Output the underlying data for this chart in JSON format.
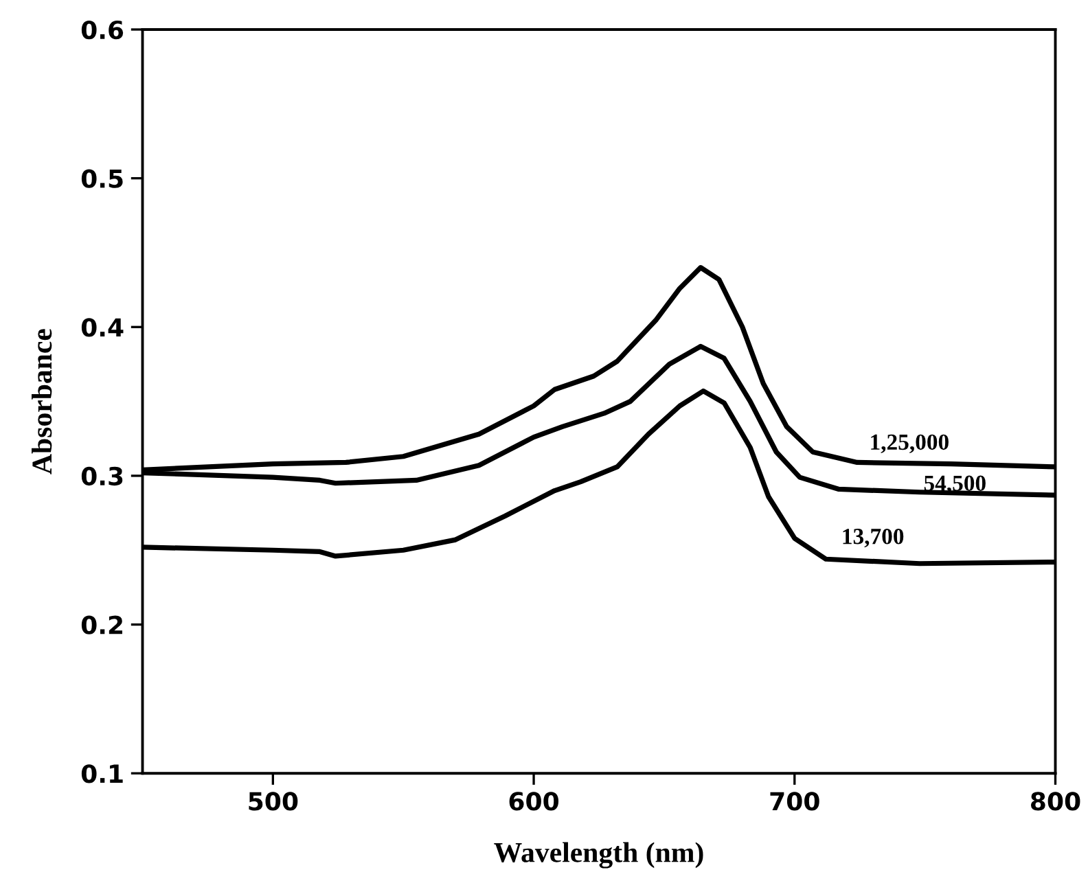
{
  "chart_data": {
    "type": "line",
    "xlabel": "Wavelength (nm)",
    "ylabel": "Absorbance",
    "xlim": [
      450,
      800
    ],
    "xticks": [
      500,
      600,
      700,
      800
    ],
    "ylim": [
      0.1,
      0.6
    ],
    "yticks": [
      0.1,
      0.2,
      0.3,
      0.4,
      0.5,
      0.6
    ],
    "grid": false,
    "legend": false,
    "marker": "none",
    "line_style": "solid",
    "series": [
      {
        "name": "1,25,000",
        "color": "#000000",
        "x": [
          450,
          500,
          528,
          550,
          579,
          600,
          608,
          623,
          632,
          647,
          656,
          664,
          671,
          680,
          688,
          697,
          707,
          724,
          760,
          800
        ],
        "values": [
          0.304,
          0.308,
          0.309,
          0.313,
          0.328,
          0.347,
          0.358,
          0.367,
          0.377,
          0.405,
          0.426,
          0.44,
          0.432,
          0.4,
          0.362,
          0.333,
          0.316,
          0.309,
          0.308,
          0.306
        ]
      },
      {
        "name": "54,500",
        "color": "#000000",
        "x": [
          450,
          500,
          518,
          524,
          555,
          579,
          600,
          611,
          627,
          637,
          652,
          664,
          673,
          683,
          693,
          702,
          717,
          748,
          800
        ],
        "values": [
          0.302,
          0.299,
          0.297,
          0.295,
          0.297,
          0.307,
          0.326,
          0.333,
          0.342,
          0.35,
          0.375,
          0.387,
          0.379,
          0.35,
          0.316,
          0.299,
          0.291,
          0.289,
          0.287
        ]
      },
      {
        "name": "13,700",
        "color": "#000000",
        "x": [
          450,
          500,
          518,
          524,
          550,
          570,
          589,
          608,
          618,
          632,
          644,
          656,
          665,
          673,
          683,
          690,
          700,
          712,
          748,
          800
        ],
        "values": [
          0.252,
          0.25,
          0.249,
          0.246,
          0.25,
          0.257,
          0.273,
          0.29,
          0.296,
          0.306,
          0.328,
          0.347,
          0.357,
          0.349,
          0.319,
          0.286,
          0.258,
          0.244,
          0.241,
          0.242
        ]
      }
    ]
  }
}
